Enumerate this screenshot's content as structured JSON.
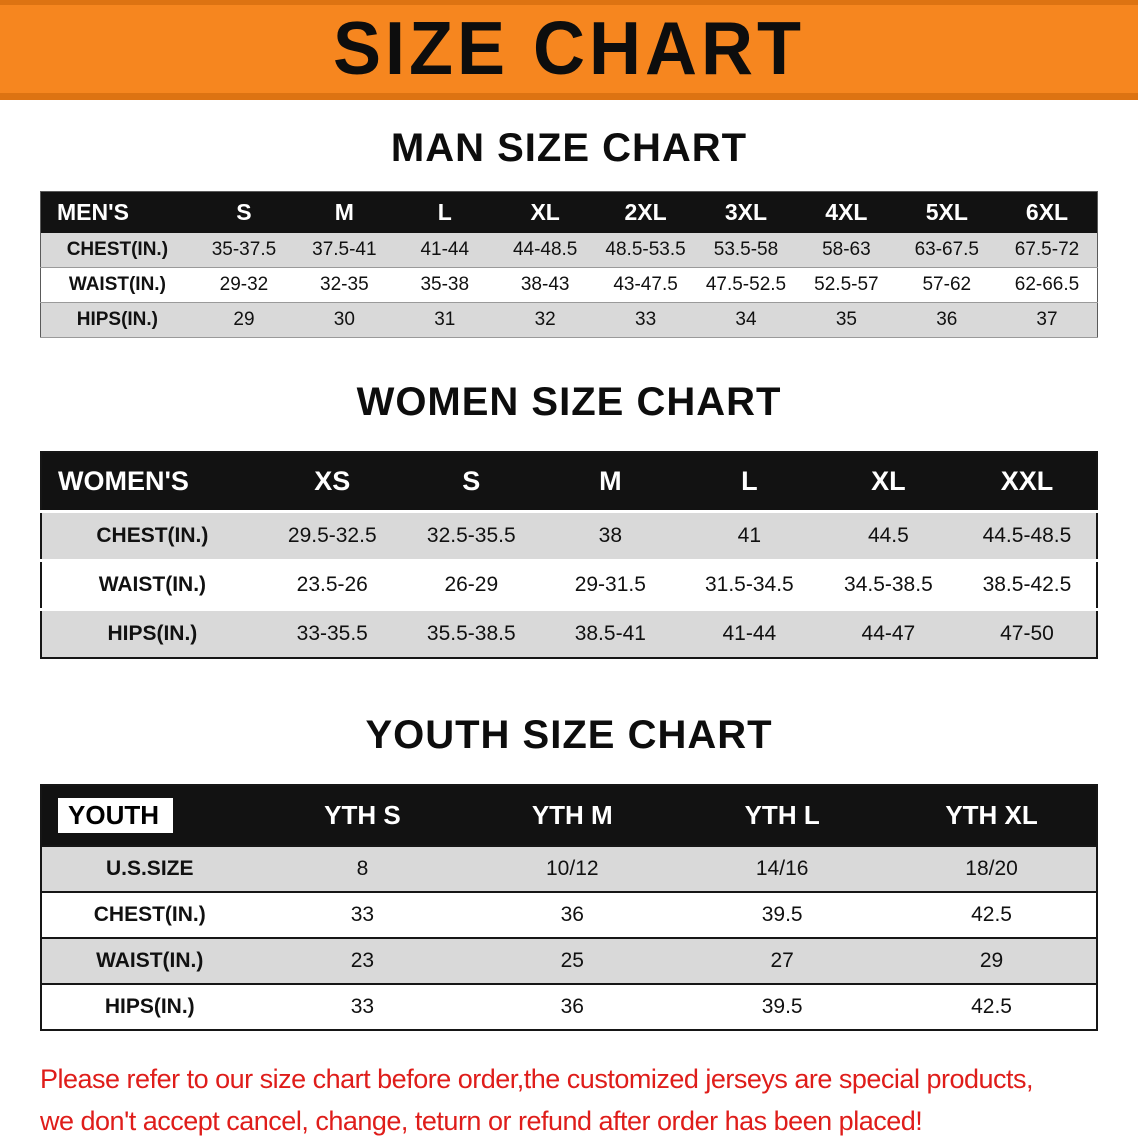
{
  "banner": {
    "title": "SIZE CHART"
  },
  "colors": {
    "banner_orange": "#F6861F",
    "banner_edge": "#DD7312",
    "header_black": "#121212",
    "row_gray": "#D9D9D9",
    "note_red": "#DF1D1A"
  },
  "sections": [
    {
      "heading": "MAN SIZE CHART",
      "table": {
        "header": [
          "MEN'S",
          "S",
          "M",
          "L",
          "XL",
          "2XL",
          "3XL",
          "4XL",
          "5XL",
          "6XL"
        ],
        "rows": [
          [
            "CHEST(IN.)",
            "35-37.5",
            "37.5-41",
            "41-44",
            "44-48.5",
            "48.5-53.5",
            "53.5-58",
            "58-63",
            "63-67.5",
            "67.5-72"
          ],
          [
            "WAIST(IN.)",
            "29-32",
            "32-35",
            "35-38",
            "38-43",
            "43-47.5",
            "47.5-52.5",
            "52.5-57",
            "57-62",
            "62-66.5"
          ],
          [
            "HIPS(IN.)",
            "29",
            "30",
            "31",
            "32",
            "33",
            "34",
            "35",
            "36",
            "37"
          ]
        ]
      }
    },
    {
      "heading": "WOMEN SIZE CHART",
      "table": {
        "header": [
          "WOMEN'S",
          "XS",
          "S",
          "M",
          "L",
          "XL",
          "XXL"
        ],
        "rows": [
          [
            "CHEST(IN.)",
            "29.5-32.5",
            "32.5-35.5",
            "38",
            "41",
            "44.5",
            "44.5-48.5"
          ],
          [
            "WAIST(IN.)",
            "23.5-26",
            "26-29",
            "29-31.5",
            "31.5-34.5",
            "34.5-38.5",
            "38.5-42.5"
          ],
          [
            "HIPS(IN.)",
            "33-35.5",
            "35.5-38.5",
            "38.5-41",
            "41-44",
            "44-47",
            "47-50"
          ]
        ]
      }
    },
    {
      "heading": "YOUTH SIZE CHART",
      "table": {
        "header": [
          "YOUTH",
          "YTH S",
          "YTH M",
          "YTH L",
          "YTH XL"
        ],
        "rows": [
          [
            "U.S.SIZE",
            "8",
            "10/12",
            "14/16",
            "18/20"
          ],
          [
            "CHEST(IN.)",
            "33",
            "36",
            "39.5",
            "42.5"
          ],
          [
            "WAIST(IN.)",
            "23",
            "25",
            "27",
            "29"
          ],
          [
            "HIPS(IN.)",
            "33",
            "36",
            "39.5",
            "42.5"
          ]
        ]
      }
    }
  ],
  "footer": {
    "line1": "Please refer to our size chart before order,the customized jerseys are special products,",
    "line2": "we don't accept cancel, change, teturn or refund after order has been placed!"
  }
}
